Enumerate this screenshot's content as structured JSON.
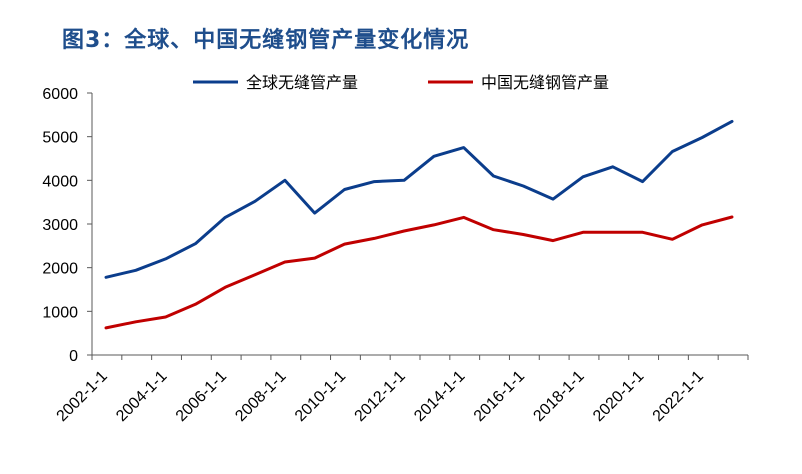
{
  "figure": {
    "title": "图3：全球、中国无缝钢管产量变化情况"
  },
  "chart_data": {
    "type": "line",
    "title": "图3：全球、中国无缝钢管产量变化情况",
    "xlabel": "",
    "ylabel": "",
    "ylim": [
      0,
      6000
    ],
    "yticks": [
      0,
      1000,
      2000,
      3000,
      4000,
      5000,
      6000
    ],
    "x": [
      "2002-1-1",
      "2003-1-1",
      "2004-1-1",
      "2005-1-1",
      "2006-1-1",
      "2007-1-1",
      "2008-1-1",
      "2009-1-1",
      "2010-1-1",
      "2011-1-1",
      "2012-1-1",
      "2013-1-1",
      "2014-1-1",
      "2015-1-1",
      "2016-1-1",
      "2017-1-1",
      "2018-1-1",
      "2019-1-1",
      "2020-1-1",
      "2021-1-1",
      "2022-1-1",
      "2023-1-1"
    ],
    "x_tick_labels": [
      "2002-1-1",
      "2004-1-1",
      "2006-1-1",
      "2008-1-1",
      "2010-1-1",
      "2012-1-1",
      "2014-1-1",
      "2016-1-1",
      "2018-1-1",
      "2020-1-1",
      "2022-1-1"
    ],
    "grid": false,
    "legend_position": "top",
    "series": [
      {
        "name": "全球无缝管产量",
        "color": "#0b3d8c",
        "values": [
          1780,
          1940,
          2200,
          2550,
          3150,
          3520,
          4000,
          3250,
          3790,
          3970,
          4000,
          4550,
          4750,
          4100,
          3870,
          3570,
          4080,
          4310,
          3970,
          4660,
          4980,
          5350
        ]
      },
      {
        "name": "中国无缝钢管产量",
        "color": "#c00000",
        "values": [
          620,
          760,
          870,
          1160,
          1550,
          1840,
          2130,
          2220,
          2540,
          2670,
          2840,
          2980,
          3150,
          2870,
          2760,
          2620,
          2810,
          2810,
          2810,
          2650,
          2980,
          3160
        ]
      }
    ]
  }
}
